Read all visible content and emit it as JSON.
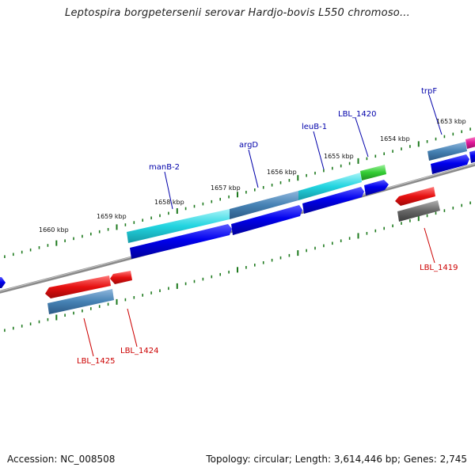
{
  "title": "Leptospira borgpetersenii serovar Hardjo-bovis L550 chromoso...",
  "footer": {
    "accession": "Accession: NC_008508",
    "summary": "Topology: circular; Length: 3,614,446 bp; Genes: 2,745"
  },
  "colors": {
    "backbone": "#8a8a8a",
    "tick": "#1e7a1e",
    "forward_label": "#0000aa",
    "reverse_label": "#cc0000",
    "cds": "#0000e6",
    "rrna_teal": "#4682b4",
    "cyan": "#22d4e0",
    "green": "#33cc33",
    "magenta": "#e0189a",
    "red": "#e61010",
    "gray": "#666666"
  },
  "map": {
    "tick_labels": [
      "1660 kbp",
      "1659 kbp",
      "1658 kbp",
      "1657 kbp",
      "1656 kbp",
      "1655 kbp",
      "1654 kbp",
      "1653 kbp"
    ],
    "forward_gene_labels": [
      "manB-2",
      "argD",
      "leuB-1",
      "LBL_1420",
      "trpF"
    ],
    "reverse_gene_labels": [
      "LBL_1425",
      "LBL_1424",
      "LBL_1419"
    ]
  }
}
